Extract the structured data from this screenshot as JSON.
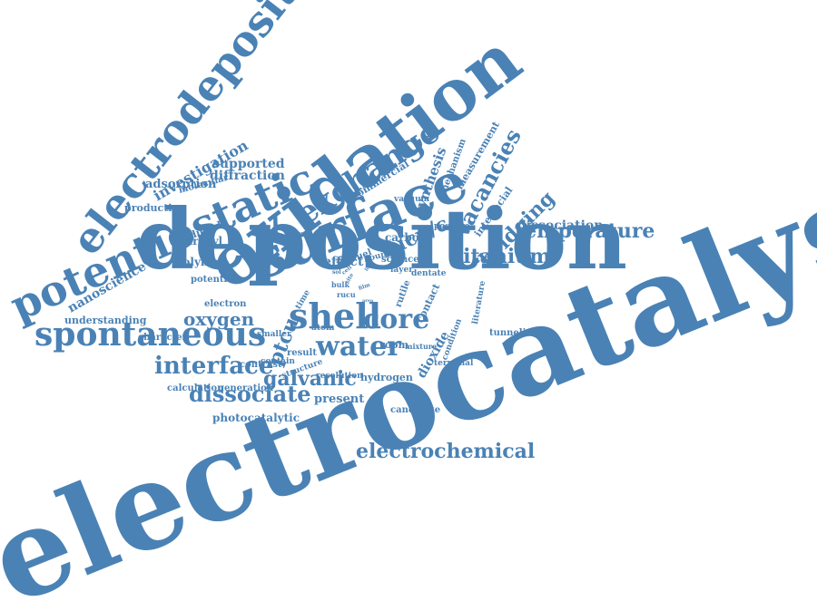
{
  "color": "#4a82b5",
  "words": [
    "electrocatalysts",
    "deposition",
    "oxidation",
    "electrodeposition",
    "surface",
    "potentiostatic",
    "exchange",
    "spontaneous",
    "shell",
    "core",
    "water",
    "interface",
    "dissociate",
    "electrochemical",
    "galvanic",
    "rucu/c",
    "temperature",
    "titanium",
    "vacancies",
    "bridging",
    "oxygen",
    "ptcu",
    "synthesis",
    "nanoscience",
    "effect",
    "dissociation",
    "investigation",
    "supported",
    "diffraction",
    "adsorption",
    "molecular",
    "production",
    "reduced",
    "hydroxyl",
    "polymer",
    "potential",
    "electron",
    "understanding",
    "character",
    "contrast",
    "calculation",
    "generation",
    "photocatalytic",
    "present",
    "candidate",
    "hydrogen",
    "resolution",
    "result",
    "structure",
    "room",
    "mixture",
    "dioxide",
    "terminal",
    "condition",
    "contact",
    "rutile",
    "literature",
    "tunneling",
    "positive",
    "carbon",
    "interfacial",
    "measurement",
    "mechanism",
    "vacuum",
    "commercial",
    "fuel",
    "bound",
    "science",
    "layer",
    "dentate",
    "atom",
    "time",
    "smaller",
    "contain",
    "bulk",
    "rucu",
    "adsorb",
    "acetic",
    "cell",
    "site",
    "film",
    "area",
    "line",
    "sol"
  ]
}
